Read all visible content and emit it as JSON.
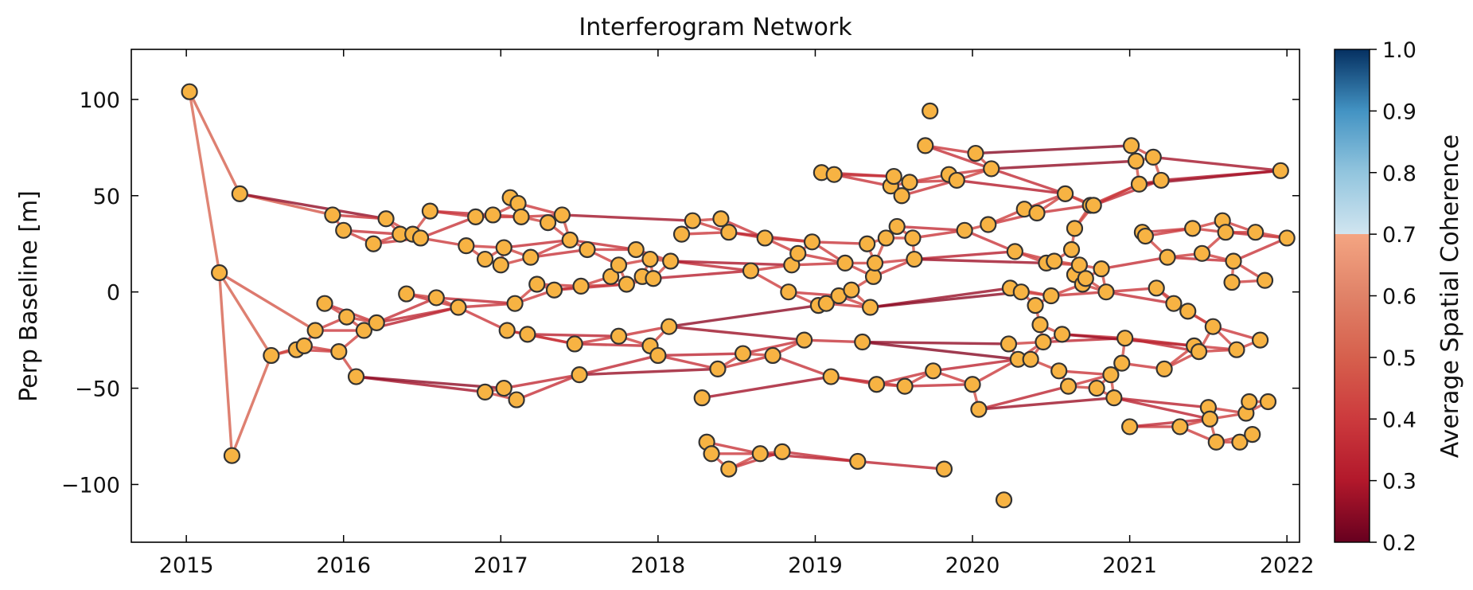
{
  "chart_data": {
    "type": "scatter",
    "title": "Interferogram Network",
    "xlabel": "",
    "ylabel": "Perp Baseline [m]",
    "xlim": [
      2014.65,
      2022.08
    ],
    "ylim": [
      -130,
      126
    ],
    "x_ticks": [
      2015,
      2016,
      2017,
      2018,
      2019,
      2020,
      2021,
      2022
    ],
    "x_tick_labels": [
      "2015",
      "2016",
      "2017",
      "2018",
      "2019",
      "2020",
      "2021",
      "2022"
    ],
    "y_ticks": [
      100,
      50,
      0,
      -50,
      -100
    ],
    "y_tick_labels": [
      "100",
      "50",
      "0",
      "−50",
      "−100"
    ],
    "grid": false,
    "marker_color": "#f7b343",
    "marker_edge_color": "#333333",
    "colorbar": {
      "label": "Average Spatial Coherence",
      "range": [
        0.2,
        1.0
      ],
      "ticks": [
        1.0,
        0.9,
        0.8,
        0.7,
        0.6,
        0.5,
        0.4,
        0.3,
        0.2
      ],
      "tick_labels": [
        "1.0",
        "0.9",
        "0.8",
        "0.7",
        "0.6",
        "0.5",
        "0.4",
        "0.3",
        "0.2"
      ],
      "colors": {
        "0.2": "#67001f",
        "0.3": "#b2182b",
        "0.4": "#d6604d",
        "0.5": "#d8665a",
        "0.6": "#e48f72",
        "0.7": "#f4a582",
        "0.8": "#d1e5f0",
        "0.9": "#4393c3",
        "1.0": "#053061"
      },
      "cmap_split": 0.7
    },
    "acquisitions": [
      [
        2015.02,
        104
      ],
      [
        2015.21,
        10
      ],
      [
        2015.29,
        -85
      ],
      [
        2015.34,
        51
      ],
      [
        2015.54,
        -33
      ],
      [
        2015.7,
        -30
      ],
      [
        2015.75,
        -28
      ],
      [
        2015.82,
        -20
      ],
      [
        2015.88,
        -6
      ],
      [
        2015.93,
        40
      ],
      [
        2015.97,
        -31
      ],
      [
        2016.0,
        32
      ],
      [
        2016.02,
        -13
      ],
      [
        2016.08,
        -44
      ],
      [
        2016.13,
        -20
      ],
      [
        2016.19,
        25
      ],
      [
        2016.21,
        -16
      ],
      [
        2016.27,
        38
      ],
      [
        2016.36,
        30
      ],
      [
        2016.4,
        -1
      ],
      [
        2016.44,
        30
      ],
      [
        2016.49,
        28
      ],
      [
        2016.55,
        42
      ],
      [
        2016.59,
        -3
      ],
      [
        2016.73,
        -8
      ],
      [
        2016.78,
        24
      ],
      [
        2016.84,
        39
      ],
      [
        2016.9,
        17
      ],
      [
        2016.95,
        40
      ],
      [
        2017.0,
        14
      ],
      [
        2017.02,
        23
      ],
      [
        2017.04,
        -20
      ],
      [
        2017.06,
        49
      ],
      [
        2017.09,
        -6
      ],
      [
        2017.11,
        46
      ],
      [
        2017.13,
        39
      ],
      [
        2017.17,
        -22
      ],
      [
        2017.19,
        18
      ],
      [
        2017.23,
        4
      ],
      [
        2017.3,
        36
      ],
      [
        2017.34,
        1
      ],
      [
        2017.39,
        40
      ],
      [
        2017.44,
        27
      ],
      [
        2017.47,
        -27
      ],
      [
        2017.51,
        3
      ],
      [
        2017.55,
        22
      ],
      [
        2017.7,
        8
      ],
      [
        2017.75,
        14
      ],
      [
        2017.8,
        4
      ],
      [
        2017.86,
        22
      ],
      [
        2017.9,
        8
      ],
      [
        2017.97,
        7
      ],
      [
        2017.95,
        17
      ],
      [
        2016.9,
        -52
      ],
      [
        2017.02,
        -50
      ],
      [
        2017.1,
        -56
      ],
      [
        2017.5,
        -43
      ],
      [
        2017.75,
        -23
      ],
      [
        2017.95,
        -28
      ],
      [
        2018.0,
        -33
      ],
      [
        2018.07,
        -18
      ],
      [
        2018.08,
        16
      ],
      [
        2018.15,
        30
      ],
      [
        2018.22,
        37
      ],
      [
        2018.28,
        -55
      ],
      [
        2018.31,
        -78
      ],
      [
        2018.34,
        -84
      ],
      [
        2018.38,
        -40
      ],
      [
        2018.4,
        38
      ],
      [
        2018.45,
        31
      ],
      [
        2018.45,
        -92
      ],
      [
        2018.54,
        -32
      ],
      [
        2018.59,
        11
      ],
      [
        2018.65,
        -84
      ],
      [
        2018.68,
        28
      ],
      [
        2018.73,
        -33
      ],
      [
        2018.79,
        -83
      ],
      [
        2018.83,
        0
      ],
      [
        2018.85,
        14
      ],
      [
        2018.89,
        20
      ],
      [
        2018.93,
        -25
      ],
      [
        2018.98,
        26
      ],
      [
        2019.02,
        -7
      ],
      [
        2019.04,
        62
      ],
      [
        2019.07,
        -6
      ],
      [
        2019.1,
        -44
      ],
      [
        2019.12,
        61
      ],
      [
        2019.15,
        -2
      ],
      [
        2019.19,
        15
      ],
      [
        2019.23,
        1
      ],
      [
        2019.27,
        -88
      ],
      [
        2019.3,
        -26
      ],
      [
        2019.33,
        25
      ],
      [
        2019.35,
        -8
      ],
      [
        2019.37,
        8
      ],
      [
        2019.38,
        15
      ],
      [
        2019.39,
        -48
      ],
      [
        2019.45,
        28
      ],
      [
        2019.48,
        55
      ],
      [
        2019.5,
        60
      ],
      [
        2019.52,
        34
      ],
      [
        2019.55,
        50
      ],
      [
        2019.57,
        -49
      ],
      [
        2019.6,
        57
      ],
      [
        2019.62,
        28
      ],
      [
        2019.63,
        17
      ],
      [
        2019.7,
        76
      ],
      [
        2019.73,
        94
      ],
      [
        2019.75,
        -41
      ],
      [
        2019.82,
        -92
      ],
      [
        2019.85,
        61
      ],
      [
        2019.9,
        58
      ],
      [
        2019.95,
        32
      ],
      [
        2020.0,
        -48
      ],
      [
        2020.02,
        72
      ],
      [
        2020.04,
        -61
      ],
      [
        2020.1,
        35
      ],
      [
        2020.12,
        64
      ],
      [
        2020.2,
        -108
      ],
      [
        2020.23,
        -27
      ],
      [
        2020.24,
        2
      ],
      [
        2020.27,
        21
      ],
      [
        2020.29,
        -35
      ],
      [
        2020.31,
        0
      ],
      [
        2020.33,
        43
      ],
      [
        2020.37,
        -35
      ],
      [
        2020.4,
        -7
      ],
      [
        2020.41,
        41
      ],
      [
        2020.43,
        -17
      ],
      [
        2020.45,
        -26
      ],
      [
        2020.47,
        15
      ],
      [
        2020.5,
        -2
      ],
      [
        2020.52,
        16
      ],
      [
        2020.55,
        -41
      ],
      [
        2020.57,
        -22
      ],
      [
        2020.59,
        51
      ],
      [
        2020.61,
        -49
      ],
      [
        2020.63,
        22
      ],
      [
        2020.65,
        33
      ],
      [
        2020.65,
        9
      ],
      [
        2020.68,
        14
      ],
      [
        2020.7,
        4
      ],
      [
        2020.72,
        7
      ],
      [
        2020.75,
        45
      ],
      [
        2020.77,
        45
      ],
      [
        2020.79,
        -50
      ],
      [
        2020.82,
        12
      ],
      [
        2020.85,
        0
      ],
      [
        2020.88,
        -43
      ],
      [
        2020.9,
        -55
      ],
      [
        2020.95,
        -37
      ],
      [
        2020.97,
        -24
      ],
      [
        2021.0,
        -70
      ],
      [
        2021.01,
        76
      ],
      [
        2021.04,
        68
      ],
      [
        2021.06,
        56
      ],
      [
        2021.08,
        31
      ],
      [
        2021.1,
        29
      ],
      [
        2021.15,
        70
      ],
      [
        2021.17,
        2
      ],
      [
        2021.2,
        58
      ],
      [
        2021.22,
        -40
      ],
      [
        2021.24,
        18
      ],
      [
        2021.28,
        -6
      ],
      [
        2021.32,
        -70
      ],
      [
        2021.37,
        -10
      ],
      [
        2021.4,
        33
      ],
      [
        2021.41,
        -28
      ],
      [
        2021.44,
        -31
      ],
      [
        2021.46,
        20
      ],
      [
        2021.5,
        -60
      ],
      [
        2021.51,
        -66
      ],
      [
        2021.53,
        -18
      ],
      [
        2021.55,
        -78
      ],
      [
        2021.59,
        37
      ],
      [
        2021.61,
        31
      ],
      [
        2021.65,
        5
      ],
      [
        2021.66,
        16
      ],
      [
        2021.68,
        -30
      ],
      [
        2021.7,
        -78
      ],
      [
        2021.74,
        -63
      ],
      [
        2021.76,
        -57
      ],
      [
        2021.78,
        -74
      ],
      [
        2021.8,
        31
      ],
      [
        2021.83,
        -25
      ],
      [
        2021.86,
        6
      ],
      [
        2021.88,
        -57
      ],
      [
        2021.96,
        63
      ],
      [
        2022.0,
        28
      ]
    ],
    "edges_note_scale": "coherence per edge in 0.2-1.0",
    "edges": [
      [
        0,
        1,
        0.52
      ],
      [
        0,
        3,
        0.5
      ],
      [
        1,
        2,
        0.5
      ],
      [
        1,
        4,
        0.5
      ],
      [
        2,
        4,
        0.5
      ],
      [
        1,
        7,
        0.48
      ],
      [
        3,
        9,
        0.48
      ],
      [
        4,
        5,
        0.46
      ],
      [
        5,
        6,
        0.45
      ],
      [
        6,
        7,
        0.44
      ]
    ]
  }
}
